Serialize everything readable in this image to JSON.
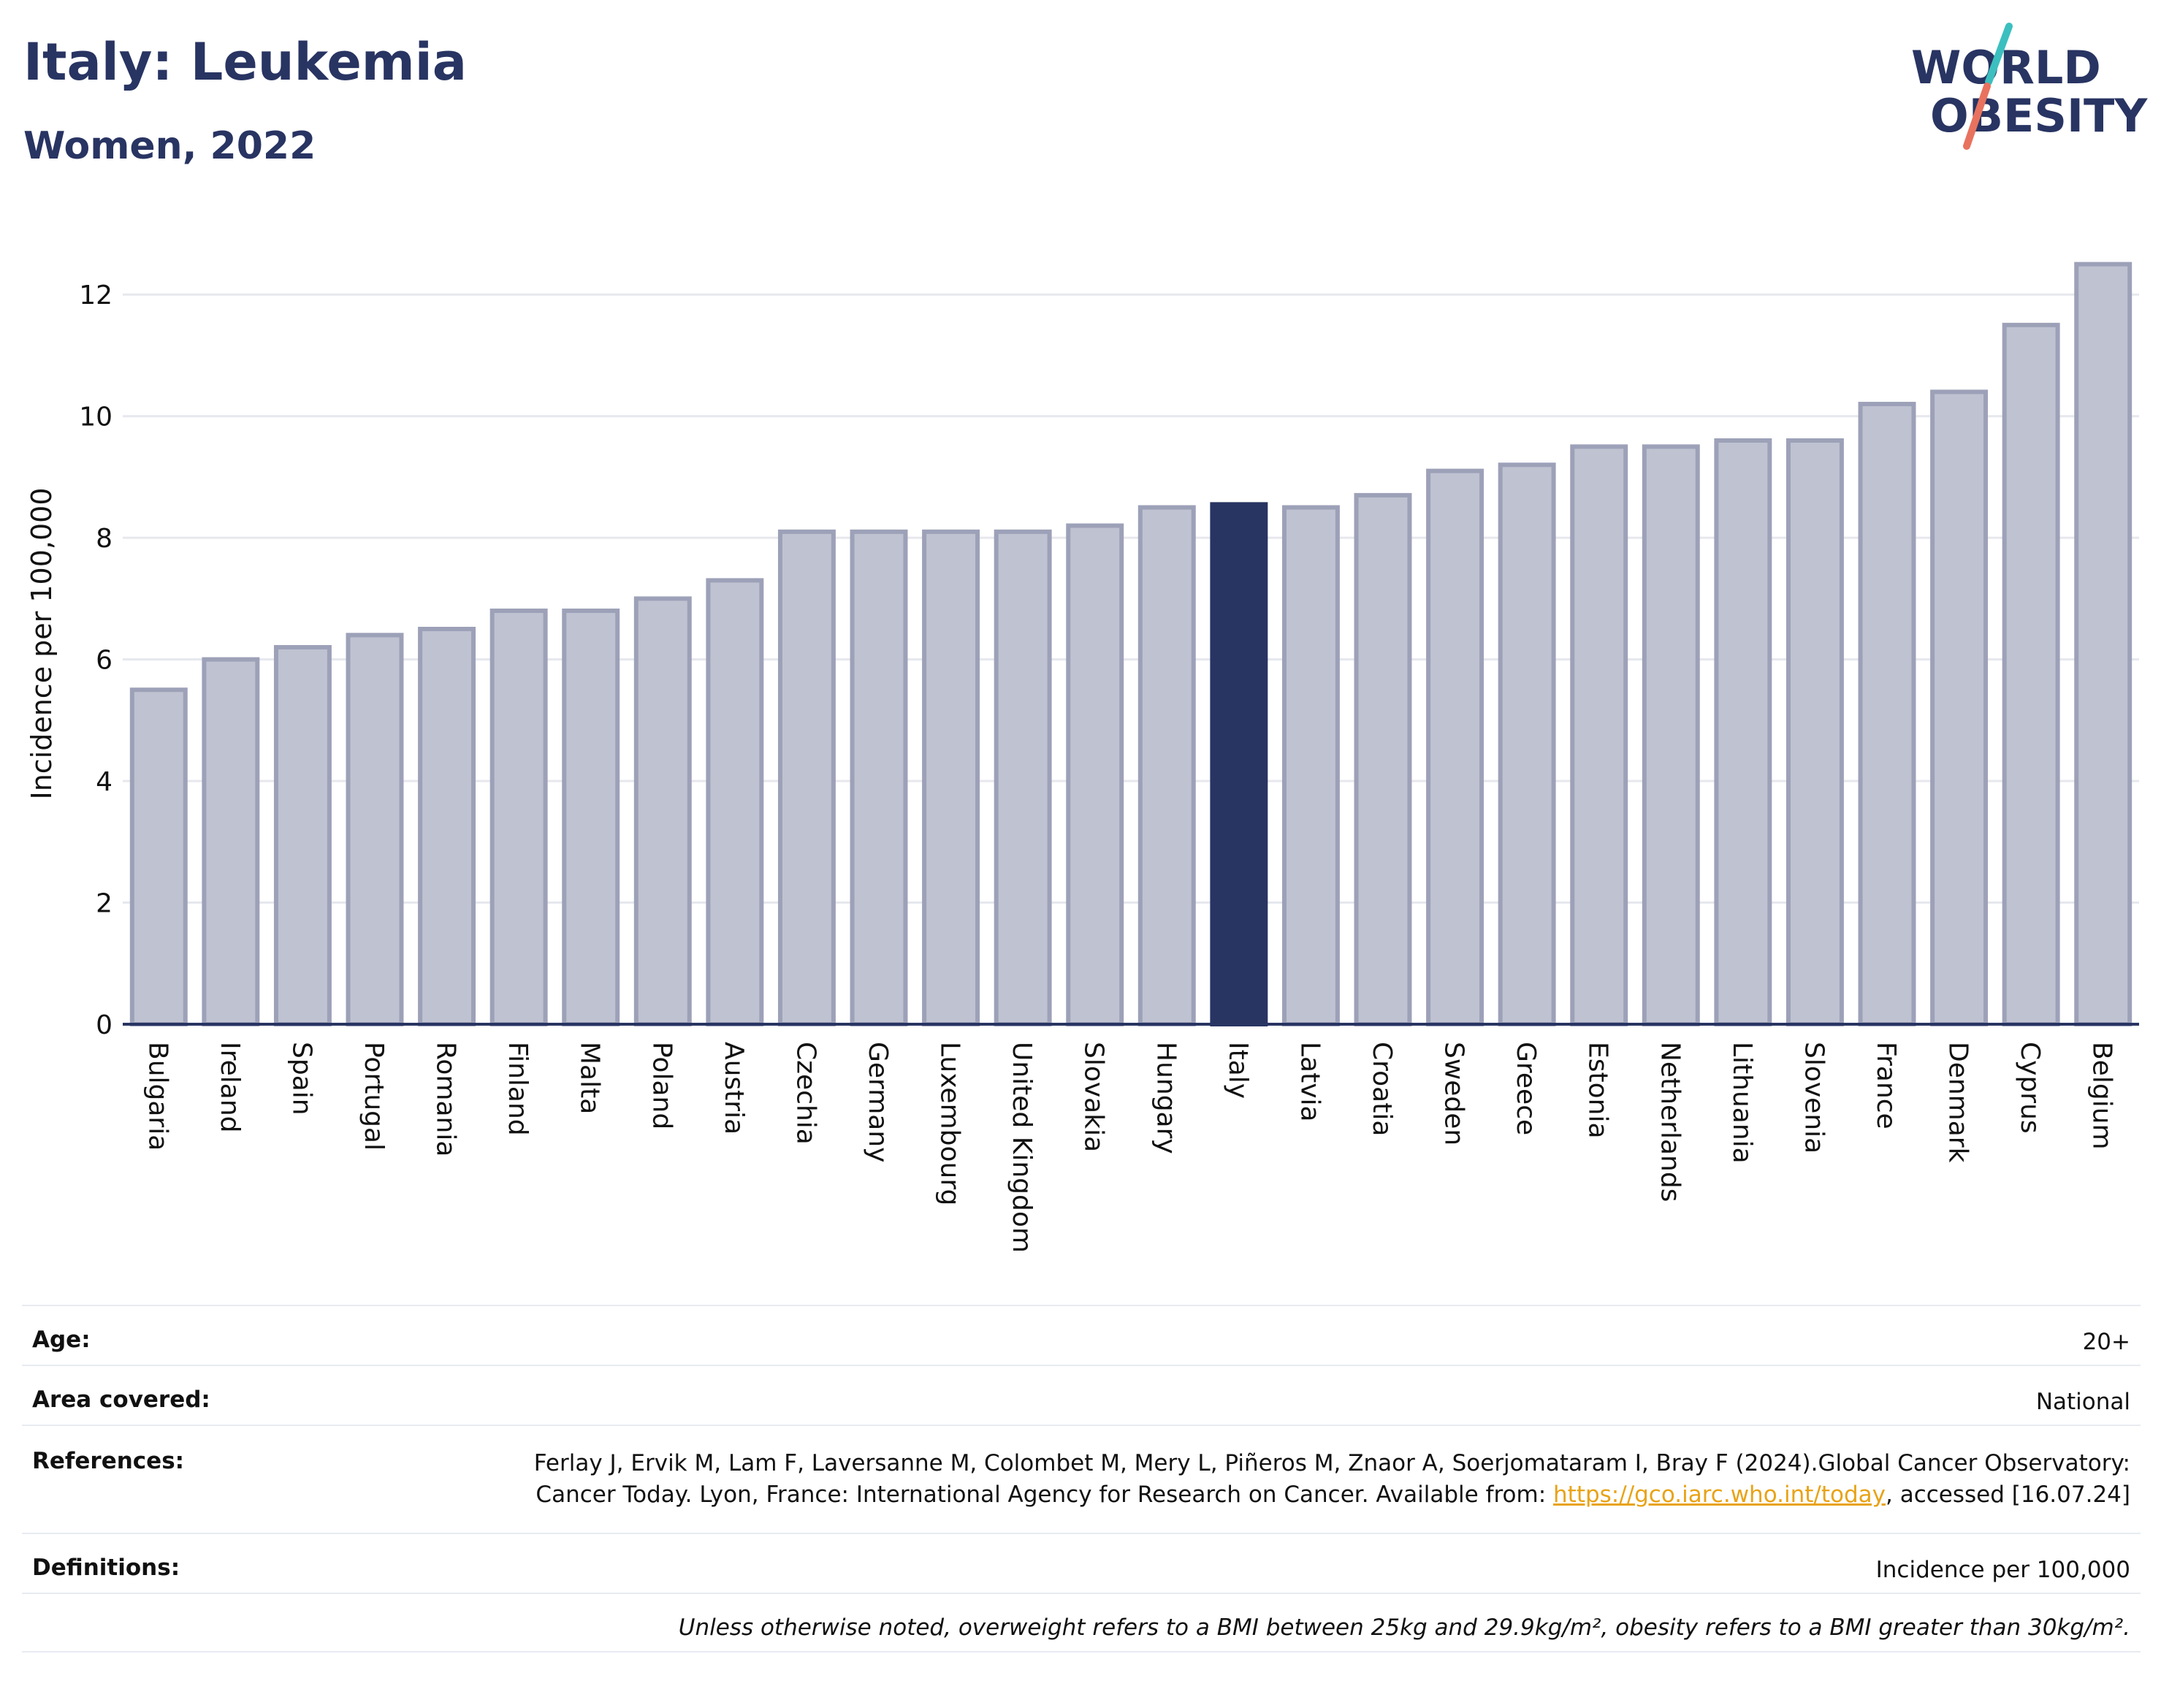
{
  "header": {
    "title": "Italy: Leukemia",
    "subtitle": "Women, 2022"
  },
  "logo": {
    "line1": "WORLD",
    "line2": "OBESITY",
    "accent_colors": [
      "#3cbfbf",
      "#e8725e"
    ]
  },
  "colors": {
    "bar": "#bfc2d0",
    "bar_border": "#9da1b8",
    "highlight": "#283462",
    "axis_text": "#111111",
    "grid": "#e6e8ee"
  },
  "chart_data": {
    "type": "bar",
    "title": "",
    "xlabel": "",
    "ylabel": "Incidence per 100,000",
    "ylim": [
      0,
      13
    ],
    "yticks": [
      0,
      2,
      4,
      6,
      8,
      10,
      12
    ],
    "grid": true,
    "highlight": "Italy",
    "categories": [
      "Bulgaria",
      "Ireland",
      "Spain",
      "Portugal",
      "Romania",
      "Finland",
      "Malta",
      "Poland",
      "Austria",
      "Czechia",
      "Germany",
      "Luxembourg",
      "United Kingdom",
      "Slovakia",
      "Hungary",
      "Italy",
      "Latvia",
      "Croatia",
      "Sweden",
      "Greece",
      "Estonia",
      "Netherlands",
      "Lithuania",
      "Slovenia",
      "France",
      "Denmark",
      "Cyprus",
      "Belgium"
    ],
    "values": [
      5.5,
      6.0,
      6.2,
      6.4,
      6.5,
      6.8,
      6.8,
      7.0,
      7.3,
      8.1,
      8.1,
      8.1,
      8.1,
      8.2,
      8.5,
      8.55,
      8.5,
      8.7,
      9.1,
      9.2,
      9.5,
      9.5,
      9.6,
      9.6,
      10.2,
      10.4,
      11.5,
      12.5
    ]
  },
  "meta": {
    "age_label": "Age:",
    "age_value": "20+",
    "area_label": "Area covered:",
    "area_value": "National",
    "references_label": "References:",
    "references_text_1": "Ferlay J, Ervik M, Lam F, Laversanne M, Colombet M, Mery L, Piñeros M, Znaor A, Soerjomataram I, Bray F (2024).Global Cancer Observatory: Cancer Today. Lyon, France: International Agency for Research on Cancer. Available from: ",
    "references_link": "https://gco.iarc.who.int/today",
    "references_text_2": ", accessed [16.07.24]",
    "definitions_label": "Definitions:",
    "definitions_value": "Incidence per 100,000",
    "note": "Unless otherwise noted, overweight refers to a BMI between 25kg and 29.9kg/m², obesity refers to a BMI greater than 30kg/m²."
  }
}
